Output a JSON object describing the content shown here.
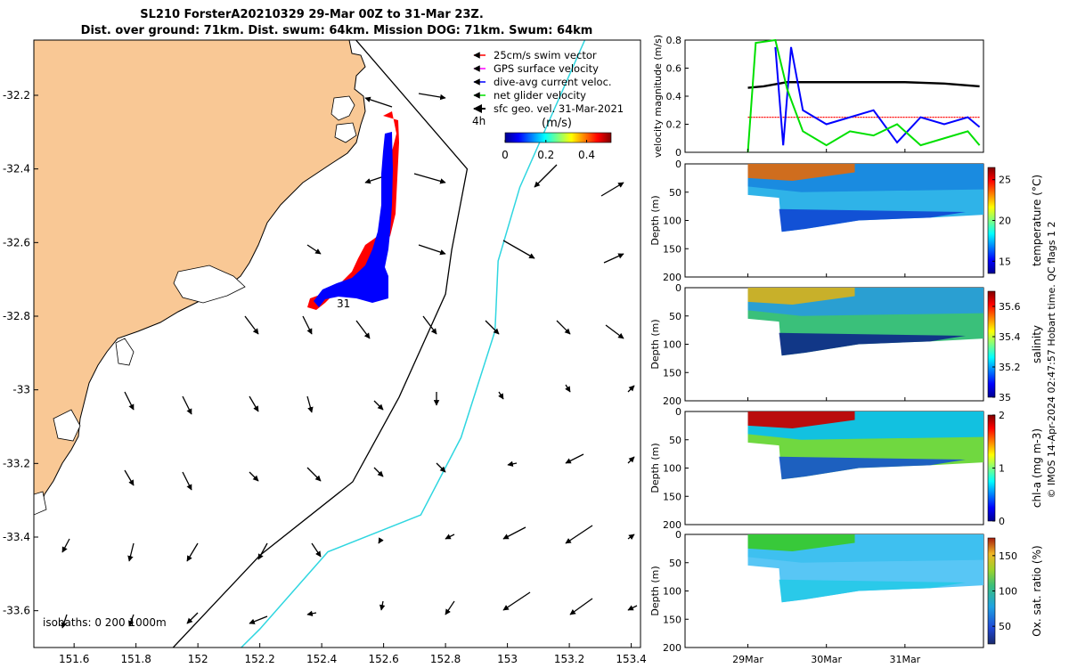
{
  "header": {
    "line1": "SL210 ForsterA20210329 29-Mar 00Z to 31-Mar 23Z.",
    "line2": "Dist. over ground: 71km. Dist. swum: 64km. Mission DOG: 71km. Swum: 64km"
  },
  "colors": {
    "land": "#f9c895",
    "glider_track": "#0000ff",
    "swim_vectors": "#ff0000",
    "isobath_200": "#000000",
    "isobath_1000": "#2fd6e0",
    "net_velocity": "#00e000",
    "speed_series": "#000000"
  },
  "map": {
    "x_ticks": [
      "151.6",
      "151.8",
      "152",
      "152.2",
      "152.4",
      "152.6",
      "152.8",
      "153",
      "153.2",
      "153.4"
    ],
    "y_ticks": [
      "-32.2",
      "-32.4",
      "-32.6",
      "-32.8",
      "-33",
      "-33.2",
      "-33.4",
      "-33.6"
    ],
    "legend": [
      {
        "label": "25cm/s swim vector",
        "color": "#ff0000",
        "icon": "arrow-icon"
      },
      {
        "label": "GPS surface velocity",
        "color": "#ff00ff",
        "icon": "arrow-icon"
      },
      {
        "label": "dive-avg current veloc.",
        "color": "#0000ff",
        "icon": "arrow-icon"
      },
      {
        "label": "net glider velocity",
        "color": "#00e000",
        "icon": "arrow-icon"
      },
      {
        "label": "sfc geo. vel. 31-Mar-2021",
        "color": "#000000",
        "icon": "arrow-icon"
      }
    ],
    "arrow_label": "4h",
    "colorbar_unit": "(m/s)",
    "colorbar_ticks": [
      "0",
      "0.2",
      "0.4"
    ],
    "track_end_label": "31",
    "isobaths_label": "isobaths: 0   200  1000m"
  },
  "right": {
    "x_ticks": [
      "29Mar",
      "30Mar",
      "31Mar"
    ],
    "credit": "© IMOS 14-Apr-2024 02:47:57 Hobart time. QC flags 1  2"
  },
  "chart_data": [
    {
      "type": "map",
      "title": "SL210 ForsterA20210329 29-Mar 00Z to 31-Mar 23Z.",
      "subtitle": "Dist. over ground: 71km. Dist. swum: 64km. Mission DOG: 71km. Swum: 64km",
      "x": [
        151.6,
        151.8,
        152,
        152.2,
        152.4,
        152.6,
        152.8,
        153,
        153.2,
        153.4
      ],
      "y": [
        -32.2,
        -32.4,
        -32.6,
        -32.8,
        -33,
        -33.2,
        -33.4,
        -33.6
      ],
      "xlim": [
        151.47,
        153.43
      ],
      "ylim": [
        -33.7,
        -32.05
      ],
      "glider_track": [
        [
          152.6,
          -32.22
        ],
        [
          152.59,
          -32.4
        ],
        [
          152.57,
          -32.55
        ],
        [
          152.52,
          -32.66
        ],
        [
          152.43,
          -32.72
        ],
        [
          152.38,
          -32.75
        ],
        [
          152.41,
          -32.77
        ]
      ],
      "track_end_label": "31",
      "isobath_200m": [
        [
          152.48,
          -32.02
        ],
        [
          152.87,
          -32.4
        ],
        [
          152.82,
          -32.62
        ],
        [
          152.8,
          -32.74
        ],
        [
          152.65,
          -33.02
        ],
        [
          152.5,
          -33.25
        ],
        [
          152.2,
          -33.45
        ],
        [
          151.92,
          -33.7
        ]
      ],
      "isobath_1000m": [
        [
          153.25,
          -32.05
        ],
        [
          153.04,
          -32.45
        ],
        [
          152.97,
          -32.65
        ],
        [
          152.96,
          -32.84
        ],
        [
          152.85,
          -33.13
        ],
        [
          152.72,
          -33.34
        ],
        [
          152.42,
          -33.44
        ],
        [
          152.2,
          -33.65
        ],
        [
          152.14,
          -33.7
        ]
      ],
      "colorbar": {
        "label": "(m/s)",
        "ticks": [
          0,
          0.2,
          0.4
        ],
        "range": [
          0,
          0.52
        ]
      },
      "legend": [
        "25cm/s swim vector",
        "GPS surface velocity",
        "dive-avg current veloc.",
        "net glider velocity",
        "sfc geo. vel. 31-Mar-2021"
      ],
      "annotations": [
        "4h",
        "isobaths: 0   200  1000m"
      ]
    },
    {
      "type": "line",
      "ylabel": "velocity magnitude (m/s)",
      "xlabel": "",
      "x_ticks": [
        "29Mar",
        "30Mar",
        "31Mar"
      ],
      "ylim": [
        0,
        0.8
      ],
      "y_ticks": [
        0,
        0.2,
        0.4,
        0.6,
        0.8
      ],
      "series": [
        {
          "x": [
            29.0,
            29.2,
            29.5,
            30.0,
            30.5,
            31.0,
            31.5,
            31.95
          ],
          "values": [
            0.46,
            0.47,
            0.5,
            0.5,
            0.5,
            0.5,
            0.49,
            0.47
          ]
        },
        {
          "x": [
            29.0,
            29.3,
            29.42,
            29.6,
            30.0,
            30.5,
            31.0,
            31.5,
            31.95
          ],
          "values": [
            0.25,
            0.25,
            0.25,
            0.25,
            0.25,
            0.25,
            0.25,
            0.25,
            0.25
          ]
        },
        {
          "x": [
            29.35,
            29.45,
            29.55,
            29.7,
            30.0,
            30.3,
            30.6,
            30.9,
            31.2,
            31.5,
            31.8,
            31.95
          ],
          "values": [
            0.75,
            0.05,
            0.75,
            0.3,
            0.2,
            0.25,
            0.3,
            0.07,
            0.25,
            0.2,
            0.25,
            0.18
          ]
        },
        {
          "x": [
            29.0,
            29.1,
            29.35,
            29.5,
            29.7,
            30.0,
            30.3,
            30.6,
            30.9,
            31.2,
            31.5,
            31.8,
            31.95
          ],
          "values": [
            0.0,
            0.78,
            0.8,
            0.45,
            0.15,
            0.05,
            0.15,
            0.12,
            0.2,
            0.05,
            0.1,
            0.15,
            0.05
          ]
        }
      ]
    },
    {
      "type": "heatmap",
      "ylabel": "Depth (m)",
      "colorbar_label": "temperature (°C)",
      "ylim": [
        200,
        0
      ],
      "y_ticks": [
        0,
        50,
        100,
        150,
        200
      ],
      "colorbar_ticks": [
        15,
        20,
        25
      ],
      "colorbar_range": [
        13.5,
        26.5
      ]
    },
    {
      "type": "heatmap",
      "ylabel": "Depth (m)",
      "colorbar_label": "salinity",
      "ylim": [
        200,
        0
      ],
      "y_ticks": [
        0,
        50,
        100,
        150,
        200
      ],
      "colorbar_ticks": [
        35,
        35.2,
        35.4,
        35.6
      ],
      "colorbar_range": [
        35,
        35.7
      ]
    },
    {
      "type": "heatmap",
      "ylabel": "Depth (m)",
      "colorbar_label": "chl-a (mg m-3)",
      "ylim": [
        200,
        0
      ],
      "y_ticks": [
        0,
        50,
        100,
        150,
        200
      ],
      "colorbar_ticks": [
        0,
        1,
        2
      ],
      "colorbar_range": [
        0,
        2
      ]
    },
    {
      "type": "heatmap",
      "ylabel": "Depth (m)",
      "colorbar_label": "Ox. sat. ratio (%)",
      "ylim": [
        200,
        0
      ],
      "y_ticks": [
        0,
        50,
        100,
        150,
        200
      ],
      "colorbar_ticks": [
        50,
        100,
        150
      ],
      "colorbar_range": [
        25,
        175
      ]
    }
  ]
}
